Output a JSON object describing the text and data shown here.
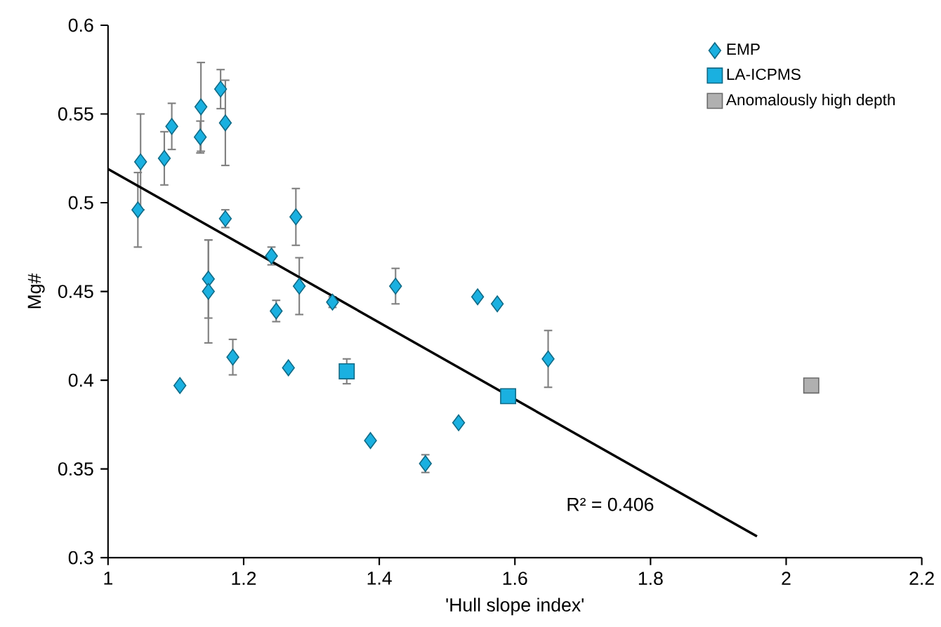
{
  "chart_data": {
    "type": "scatter",
    "xlabel": "'Hull slope index'",
    "ylabel": "Mg#",
    "xlim": [
      1,
      2.2
    ],
    "ylim": [
      0.3,
      0.6
    ],
    "xticks": [
      1,
      1.2,
      1.4,
      1.6,
      1.8,
      2,
      2.2
    ],
    "yticks": [
      0.3,
      0.35,
      0.4,
      0.45,
      0.5,
      0.55,
      0.6
    ],
    "grid": false,
    "legend": "top right",
    "annotations": [
      "R² = 0.406"
    ],
    "series": [
      {
        "name": "EMP",
        "marker": "diamond",
        "color": "#1ab0e0",
        "x": [
          1.044,
          1.048,
          1.083,
          1.094,
          1.106,
          1.136,
          1.137,
          1.148,
          1.148,
          1.166,
          1.173,
          1.173,
          1.184,
          1.241,
          1.248,
          1.266,
          1.277,
          1.282,
          1.331,
          1.387,
          1.424,
          1.468,
          1.517,
          1.545,
          1.574,
          1.649
        ],
        "values": [
          0.496,
          0.523,
          0.525,
          0.543,
          0.397,
          0.537,
          0.554,
          0.457,
          0.45,
          0.564,
          0.545,
          0.491,
          0.413,
          0.47,
          0.439,
          0.407,
          0.492,
          0.453,
          0.444,
          0.366,
          0.453,
          0.353,
          0.376,
          0.447,
          0.443,
          0.412
        ],
        "errors": [
          0.021,
          0.027,
          0.015,
          0.013,
          null,
          0.009,
          0.025,
          0.022,
          0.029,
          0.011,
          0.024,
          0.005,
          0.01,
          0.005,
          0.006,
          null,
          0.016,
          0.016,
          0.003,
          null,
          0.01,
          0.005,
          null,
          null,
          null,
          0.016
        ]
      },
      {
        "name": "LA-ICPMS",
        "marker": "square",
        "color": "#1ab0e0",
        "x": [
          1.352,
          1.59
        ],
        "values": [
          0.405,
          0.391
        ],
        "errors": [
          0.007,
          null
        ]
      },
      {
        "name": "Anomalously high depth",
        "marker": "square",
        "color": "#b0b0b0",
        "x": [
          2.037
        ],
        "values": [
          0.397
        ]
      },
      {
        "type": "line",
        "color": "#000000",
        "x": [
          1.0,
          1.957
        ],
        "values": [
          0.519,
          0.312
        ]
      }
    ]
  }
}
